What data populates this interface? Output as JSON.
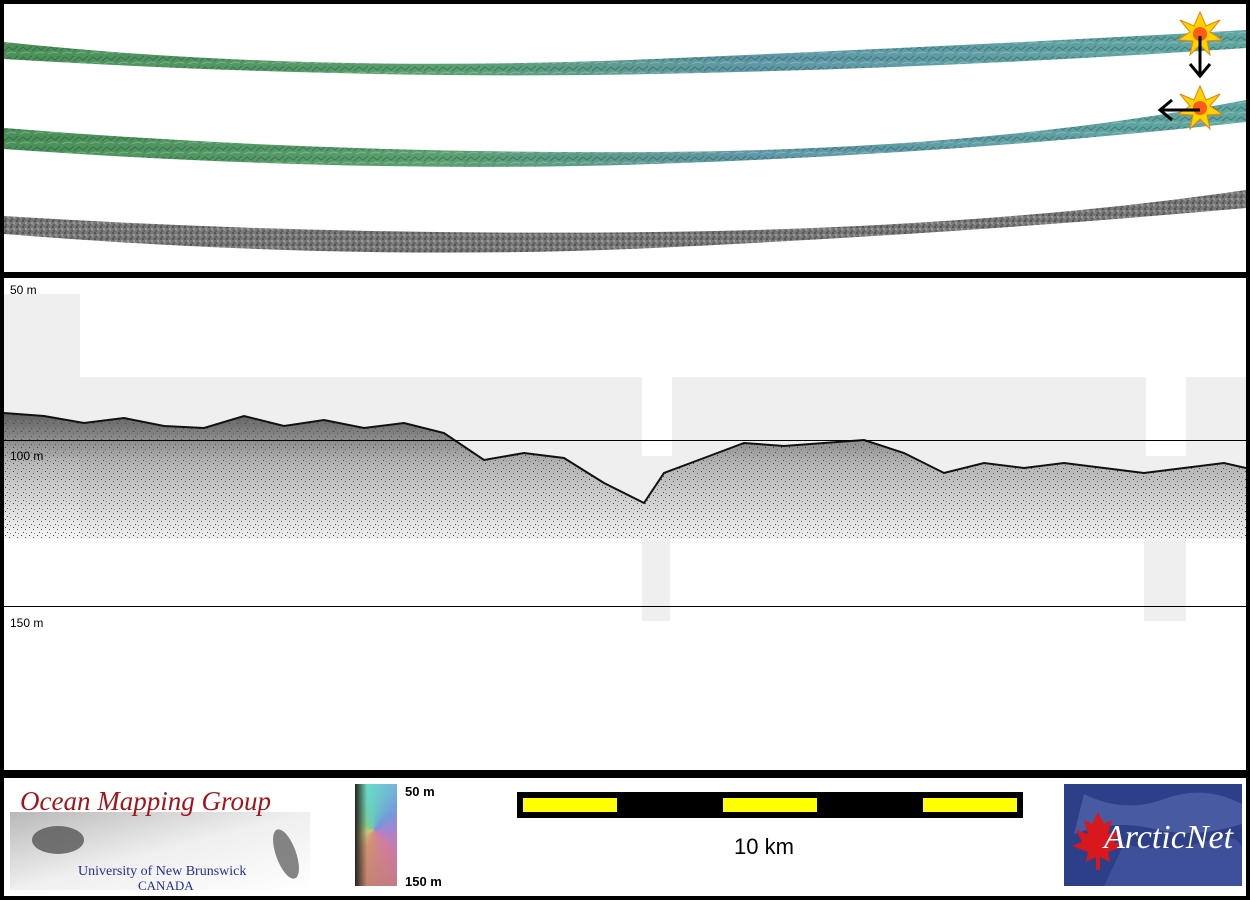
{
  "profile": {
    "label_50": "50 m",
    "label_100": "100 m",
    "label_150": "150 m"
  },
  "footer": {
    "ocean_mapping_title": "Ocean Mapping Group",
    "university_line": "University of New Brunswick",
    "country_line": "CANADA",
    "colorbar_top": "50 m",
    "colorbar_bottom": "150 m",
    "scale_label": "10 km",
    "arcticnet_text": "ArcticNet"
  },
  "colors": {
    "swath_green": "#4f9a6a",
    "swath_teal": "#6fa6b0",
    "backscatter_gray": "#6a6a6a",
    "scale_yellow": "#ffff00",
    "ogm_red": "#a4151b",
    "unb_blue": "#24308c"
  },
  "icons": [
    "sun-marker-icon",
    "down-arrow-icon",
    "left-arrow-icon",
    "maple-leaf-icon"
  ]
}
